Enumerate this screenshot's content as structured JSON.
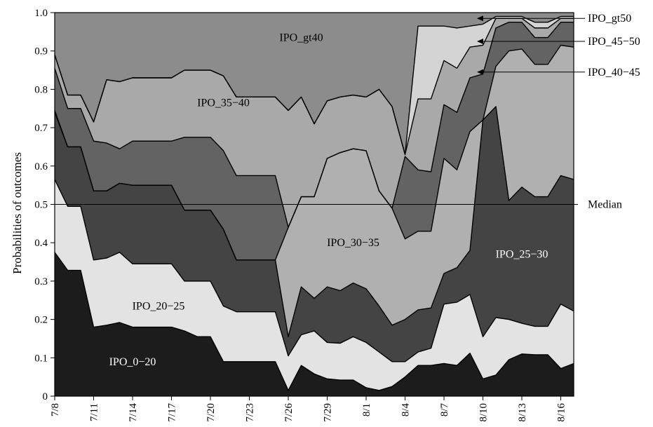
{
  "chart_data": {
    "type": "area",
    "stacked": true,
    "ylabel": "Probabilities of outcomes",
    "xlabel": "",
    "ylim": [
      0,
      1
    ],
    "yticks": [
      "0",
      "0.1",
      "0.2",
      "0.3",
      "0.4",
      "0.5",
      "0.6",
      "0.7",
      "0.8",
      "0.9",
      "1.0"
    ],
    "x_ticks": [
      "7/8",
      "7/11",
      "7/14",
      "7/17",
      "7/20",
      "7/23",
      "7/26",
      "7/29",
      "8/1",
      "8/4",
      "8/7",
      "8/10",
      "8/13",
      "8/16"
    ],
    "x": [
      "7/8",
      "7/9",
      "7/10",
      "7/11",
      "7/12",
      "7/13",
      "7/14",
      "7/15",
      "7/16",
      "7/17",
      "7/18",
      "7/19",
      "7/20",
      "7/21",
      "7/22",
      "7/23",
      "7/24",
      "7/25",
      "7/26",
      "7/27",
      "7/28",
      "7/29",
      "7/30",
      "7/31",
      "8/1",
      "8/2",
      "8/3",
      "8/4",
      "8/5",
      "8/6",
      "8/7",
      "8/8",
      "8/9",
      "8/10",
      "8/11",
      "8/12",
      "8/13",
      "8/14",
      "8/15",
      "8/16",
      "8/17"
    ],
    "cumulative_boundaries": [
      {
        "series": "IPO_0-20",
        "top": [
          0.375,
          0.328,
          0.328,
          0.18,
          0.185,
          0.192,
          0.18,
          0.18,
          0.18,
          0.18,
          0.17,
          0.155,
          0.155,
          0.09,
          0.09,
          0.09,
          0.09,
          0.09,
          0.015,
          0.08,
          0.058,
          0.045,
          0.042,
          0.042,
          0.022,
          0.015,
          0.025,
          0.05,
          0.08,
          0.08,
          0.085,
          0.08,
          0.112,
          0.045,
          0.055,
          0.095,
          0.11,
          0.108,
          0.108,
          0.072,
          0.085
        ]
      },
      {
        "series": "IPO_20-25",
        "top": [
          0.565,
          0.495,
          0.495,
          0.355,
          0.36,
          0.375,
          0.345,
          0.345,
          0.345,
          0.345,
          0.3,
          0.3,
          0.3,
          0.235,
          0.22,
          0.22,
          0.22,
          0.22,
          0.105,
          0.16,
          0.17,
          0.14,
          0.138,
          0.155,
          0.14,
          0.115,
          0.09,
          0.09,
          0.115,
          0.125,
          0.24,
          0.245,
          0.265,
          0.155,
          0.205,
          0.2,
          0.19,
          0.182,
          0.182,
          0.24,
          0.222
        ]
      },
      {
        "series": "IPO_25-30",
        "top": [
          0.74,
          0.65,
          0.65,
          0.535,
          0.535,
          0.555,
          0.55,
          0.55,
          0.55,
          0.55,
          0.485,
          0.485,
          0.485,
          0.435,
          0.355,
          0.355,
          0.355,
          0.355,
          0.155,
          0.285,
          0.255,
          0.285,
          0.275,
          0.295,
          0.28,
          0.235,
          0.185,
          0.2,
          0.225,
          0.23,
          0.32,
          0.335,
          0.38,
          0.72,
          0.755,
          0.51,
          0.545,
          0.52,
          0.52,
          0.575,
          0.565
        ]
      },
      {
        "series": "IPO_30-35",
        "top": [
          0.745,
          0.65,
          0.65,
          0.535,
          0.535,
          0.555,
          0.55,
          0.55,
          0.55,
          0.55,
          0.485,
          0.485,
          0.485,
          0.435,
          0.355,
          0.355,
          0.355,
          0.355,
          0.44,
          0.52,
          0.52,
          0.62,
          0.635,
          0.645,
          0.64,
          0.535,
          0.49,
          0.41,
          0.43,
          0.43,
          0.62,
          0.59,
          0.69,
          0.72,
          0.86,
          0.9,
          0.905,
          0.865,
          0.865,
          0.915,
          0.91
        ]
      },
      {
        "series": "IPO_35-40",
        "top": [
          0.855,
          0.75,
          0.75,
          0.665,
          0.66,
          0.645,
          0.665,
          0.665,
          0.665,
          0.665,
          0.675,
          0.675,
          0.675,
          0.64,
          0.575,
          0.575,
          0.575,
          0.575,
          0.44,
          0.52,
          0.52,
          0.62,
          0.635,
          0.645,
          0.64,
          0.535,
          0.49,
          0.625,
          0.59,
          0.585,
          0.76,
          0.74,
          0.83,
          0.84,
          0.96,
          0.975,
          0.975,
          0.935,
          0.935,
          0.975,
          0.975
        ]
      },
      {
        "series": "IPO_40-45",
        "top": [
          0.89,
          0.785,
          0.785,
          0.715,
          0.825,
          0.82,
          0.83,
          0.83,
          0.83,
          0.83,
          0.85,
          0.85,
          0.85,
          0.835,
          0.78,
          0.78,
          0.78,
          0.78,
          0.745,
          0.78,
          0.71,
          0.77,
          0.78,
          0.785,
          0.78,
          0.8,
          0.755,
          0.63,
          0.775,
          0.775,
          0.875,
          0.855,
          0.91,
          0.915,
          0.985,
          0.985,
          0.985,
          0.96,
          0.96,
          0.985,
          0.985
        ]
      },
      {
        "series": "IPO_45-50",
        "top": [
          0.89,
          0.785,
          0.785,
          0.715,
          0.825,
          0.82,
          0.83,
          0.83,
          0.83,
          0.83,
          0.85,
          0.85,
          0.85,
          0.835,
          0.78,
          0.78,
          0.78,
          0.78,
          0.745,
          0.78,
          0.71,
          0.77,
          0.78,
          0.785,
          0.78,
          0.8,
          0.755,
          0.63,
          0.965,
          0.965,
          0.965,
          0.96,
          0.965,
          0.97,
          0.99,
          0.99,
          0.99,
          0.975,
          0.975,
          0.99,
          0.99
        ]
      },
      {
        "series": "IPO_gt40",
        "top": [
          1,
          1,
          1,
          1,
          1,
          1,
          1,
          1,
          1,
          1,
          1,
          1,
          1,
          1,
          1,
          1,
          1,
          1,
          1,
          1,
          1,
          1,
          1,
          1,
          1,
          1,
          1,
          1,
          1,
          1,
          1,
          1,
          1,
          1,
          1,
          1,
          1,
          1,
          1,
          1,
          1
        ]
      }
    ],
    "series": [
      {
        "name": "IPO_0-20",
        "color": "#1c1c1c"
      },
      {
        "name": "IPO_20-25",
        "color": "#e3e3e3"
      },
      {
        "name": "IPO_25-30",
        "color": "#444444"
      },
      {
        "name": "IPO_30-35",
        "color": "#b0b0b0"
      },
      {
        "name": "IPO_35-40",
        "color": "#636363"
      },
      {
        "name": "IPO_40-45",
        "color": "#a9a9a9"
      },
      {
        "name": "IPO_45-50",
        "color": "#d4d4d4"
      },
      {
        "name": "IPO_gt40",
        "color": "#8c8c8c"
      }
    ],
    "area_labels": [
      {
        "text": "IPO_gt40",
        "x": "7/27",
        "y": 0.935,
        "color": "#000000"
      },
      {
        "text": "IPO_35−40",
        "x": "7/21",
        "y": 0.765,
        "color": "#000000"
      },
      {
        "text": "IPO_30−35",
        "x": "7/31",
        "y": 0.4,
        "color": "#000000"
      },
      {
        "text": "IPO_25−30",
        "x": "8/13",
        "y": 0.37,
        "color": "#ffffff"
      },
      {
        "text": "IPO_20−25",
        "x": "7/16",
        "y": 0.235,
        "color": "#000000"
      },
      {
        "text": "IPO_0−20",
        "x": "7/14",
        "y": 0.09,
        "color": "#ffffff"
      }
    ],
    "callouts": [
      {
        "text": "IPO_gt50",
        "target_x": "8/9",
        "target_y": 0.985,
        "y": 0.985
      },
      {
        "text": "IPO_45−50",
        "target_x": "8/9",
        "target_y": 0.925,
        "y": 0.925
      },
      {
        "text": "IPO_40−45",
        "target_x": "8/9",
        "target_y": 0.845,
        "y": 0.845
      }
    ],
    "reference_lines": [
      {
        "label": "Median",
        "y": 0.5
      }
    ]
  }
}
